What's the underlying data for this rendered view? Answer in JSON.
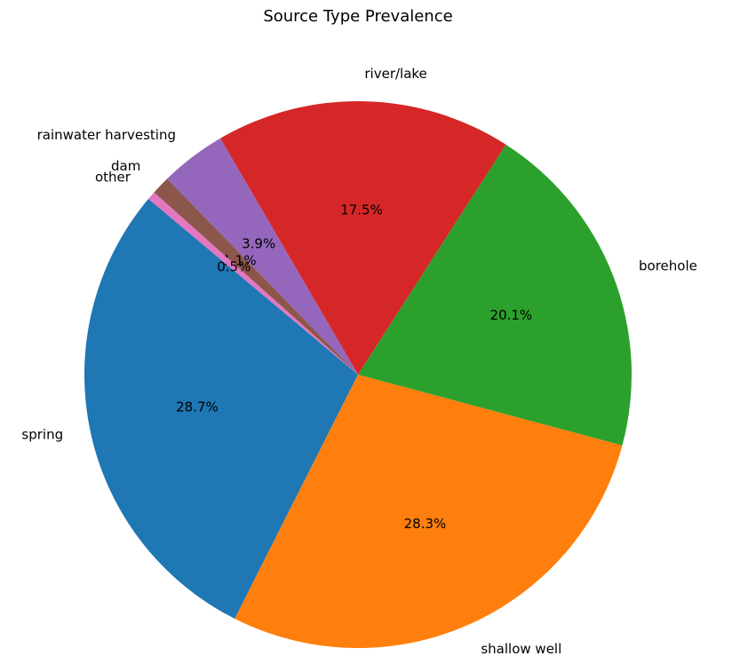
{
  "chart_data": {
    "type": "pie",
    "title": "Source Type Prevalence",
    "slices": [
      {
        "label": "spring",
        "value": 28.7,
        "pct_label": "28.7%",
        "color": "#1f77b4"
      },
      {
        "label": "shallow well",
        "value": 28.3,
        "pct_label": "28.3%",
        "color": "#ff7f0e"
      },
      {
        "label": "borehole",
        "value": 20.1,
        "pct_label": "20.1%",
        "color": "#2ca02c"
      },
      {
        "label": "river/lake",
        "value": 17.5,
        "pct_label": "17.5%",
        "color": "#d62728"
      },
      {
        "label": "rainwater harvesting",
        "value": 3.9,
        "pct_label": "3.9%",
        "color": "#9467bd"
      },
      {
        "label": "dam",
        "value": 1.1,
        "pct_label": "1.1%",
        "color": "#8c564b"
      },
      {
        "label": "other",
        "value": 0.5,
        "pct_label": "0.5%",
        "color": "#e377c2"
      }
    ],
    "start_angle_deg": 140,
    "direction": "counterclockwise"
  }
}
